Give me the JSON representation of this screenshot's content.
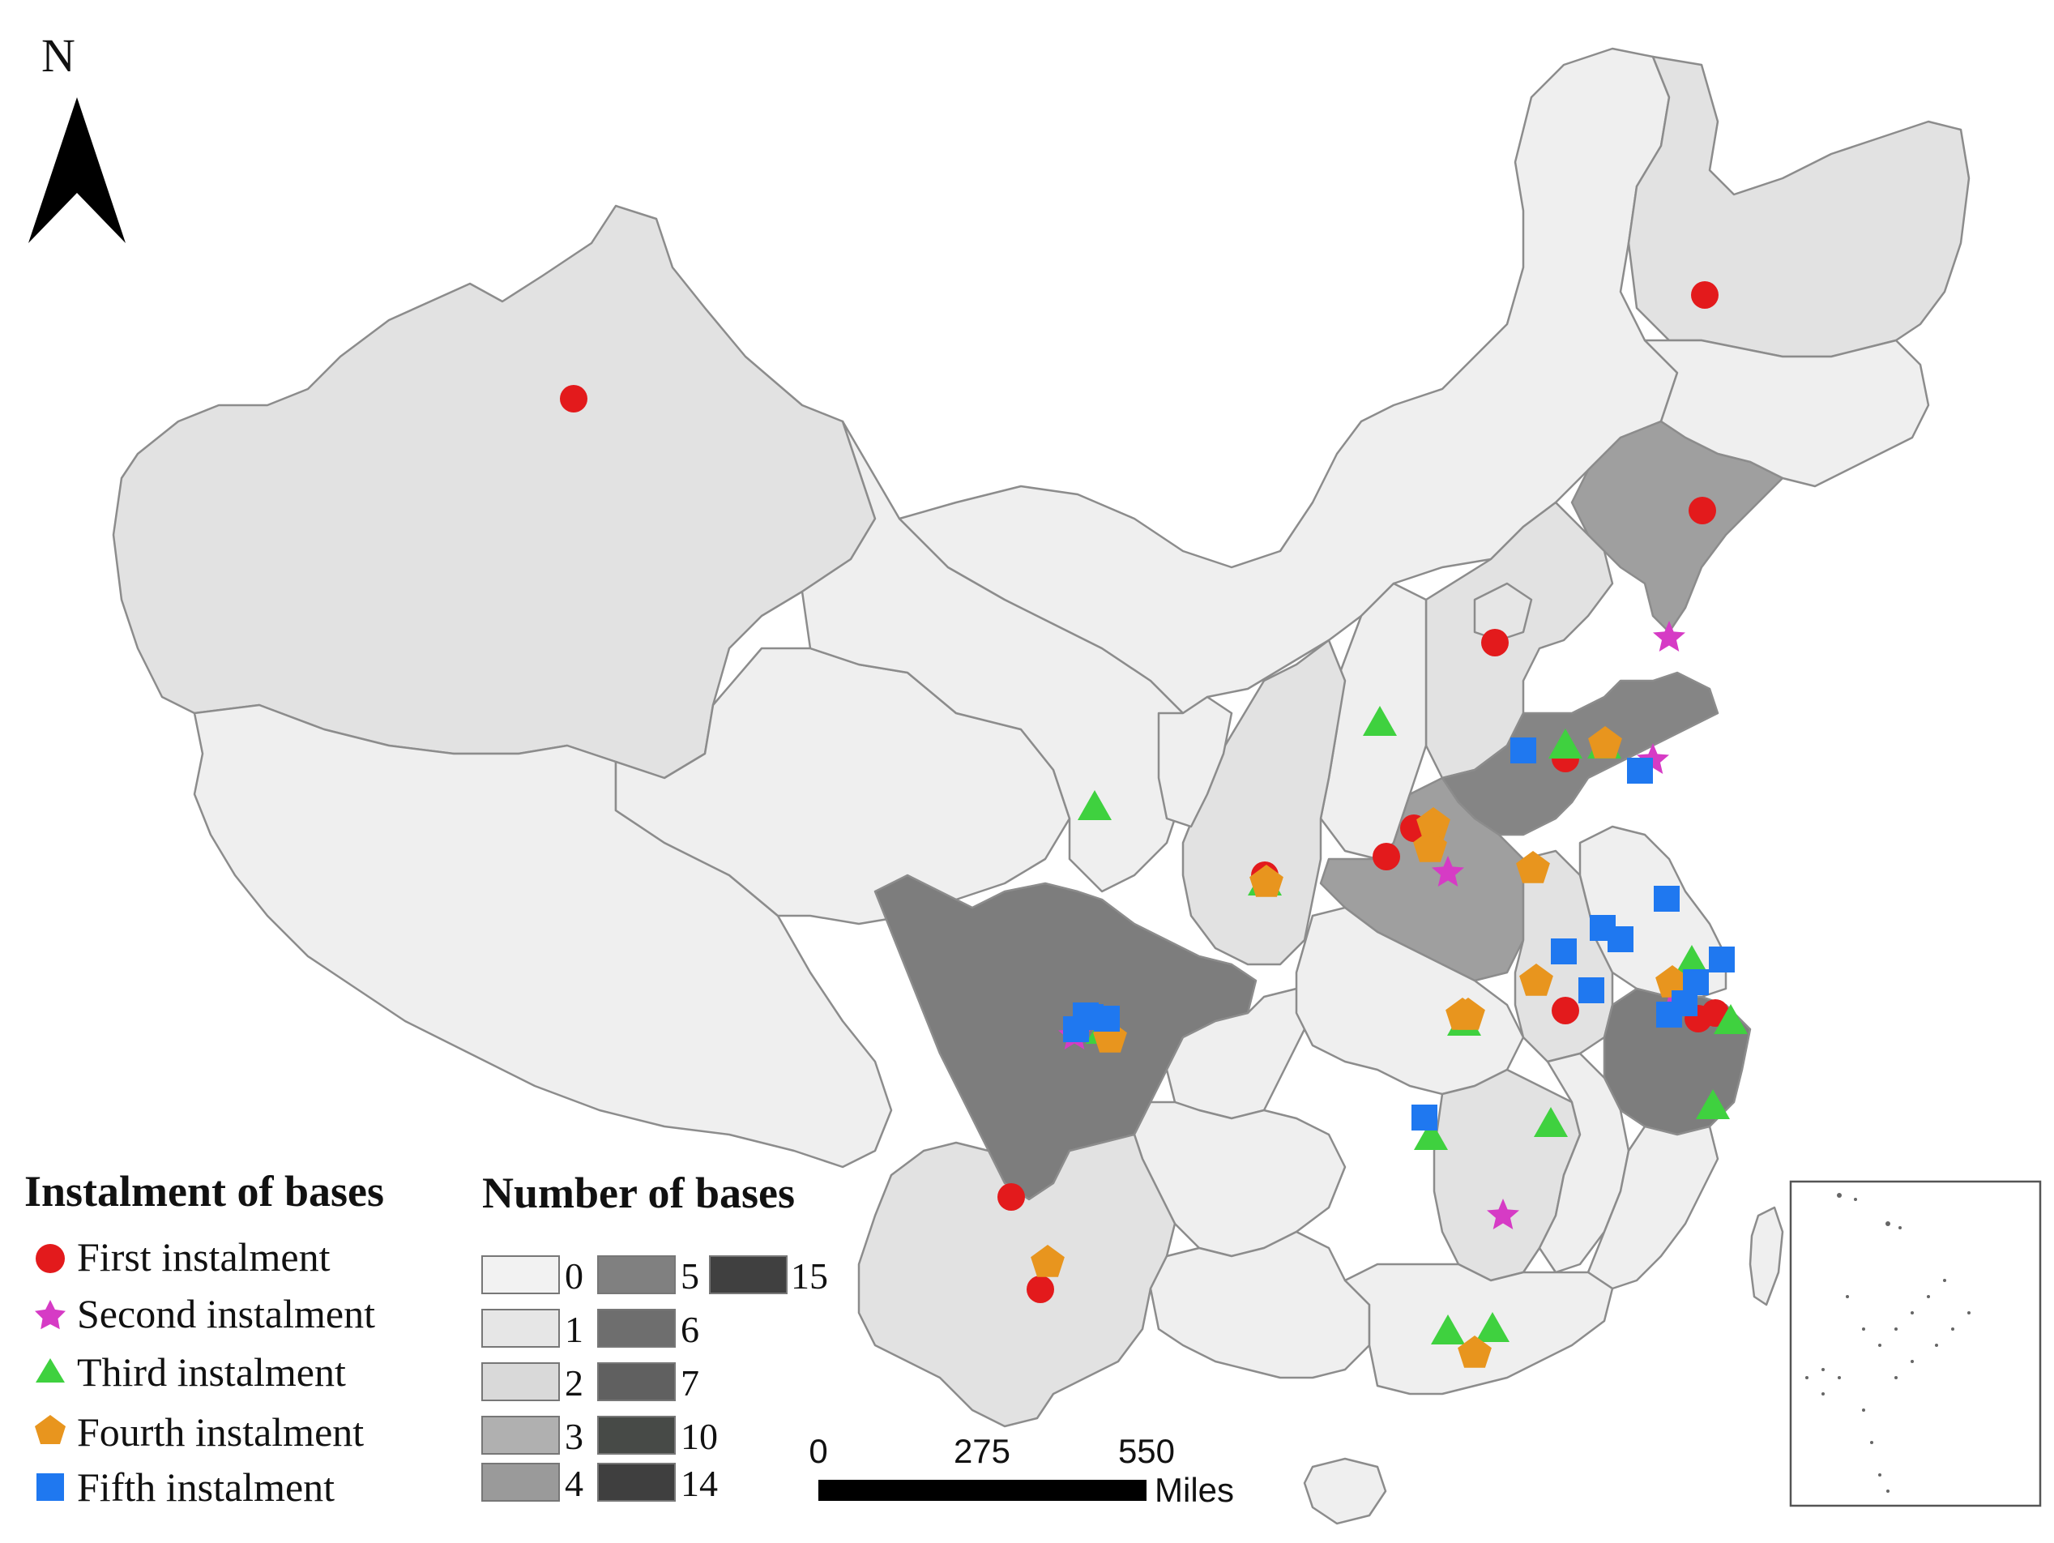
{
  "north_label": "N",
  "legend_instalment": {
    "title": "Instalment of bases",
    "items": [
      {
        "label": "First instalment",
        "color": "#e31a1c",
        "shape": "circle"
      },
      {
        "label": "Second instalment",
        "color": "#d63bc5",
        "shape": "star"
      },
      {
        "label": "Third instalment",
        "color": "#3fd13f",
        "shape": "triangle"
      },
      {
        "label": "Fourth instalment",
        "color": "#e8951e",
        "shape": "pentagon"
      },
      {
        "label": "Fifth instalment",
        "color": "#1f78f0",
        "shape": "square"
      }
    ]
  },
  "legend_count": {
    "title": "Number of bases",
    "items": [
      {
        "label": "0",
        "color": "#f2f2f2"
      },
      {
        "label": "1",
        "color": "#e6e6e6"
      },
      {
        "label": "2",
        "color": "#d9d9d9"
      },
      {
        "label": "3",
        "color": "#b0b0b0"
      },
      {
        "label": "4",
        "color": "#9a9a9a"
      },
      {
        "label": "5",
        "color": "#808080"
      },
      {
        "label": "6",
        "color": "#6e6e6e"
      },
      {
        "label": "7",
        "color": "#606060"
      },
      {
        "label": "10",
        "color": "#474a47"
      },
      {
        "label": "14",
        "color": "#3f3f3f"
      },
      {
        "label": "15",
        "color": "#404040"
      }
    ]
  },
  "scale_bar": {
    "ticks": [
      "0",
      "275",
      "550"
    ],
    "unit": "Miles"
  }
}
